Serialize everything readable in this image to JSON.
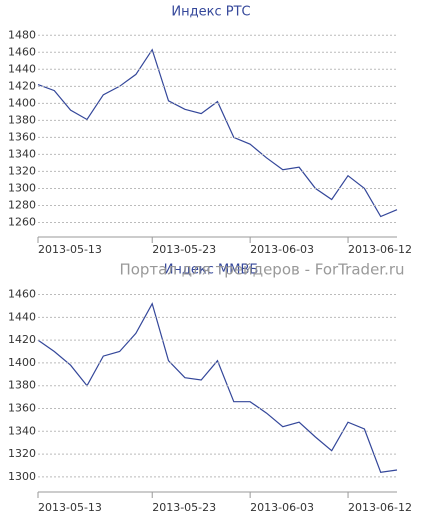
{
  "chart_data": [
    {
      "type": "line",
      "title": "Индекс РТС",
      "categories": [
        "2013-05-13",
        null,
        null,
        null,
        null,
        null,
        null,
        "2013-05-23",
        null,
        null,
        null,
        null,
        null,
        "2013-06-03",
        null,
        null,
        null,
        null,
        null,
        "2013-06-12",
        null,
        null,
        null
      ],
      "series": [
        {
          "name": "Индекс РТС",
          "color": "#34479a",
          "values": [
            1422,
            1415,
            1392,
            1381,
            1410,
            1420,
            1434,
            1463,
            1403,
            1393,
            1388,
            1402,
            1360,
            1352,
            1336,
            1322,
            1325,
            1300,
            1287,
            1315,
            1300,
            1267,
            1275
          ]
        }
      ],
      "ylim": [
        1250,
        1485
      ],
      "yticks": [
        1260,
        1280,
        1300,
        1320,
        1340,
        1360,
        1380,
        1400,
        1420,
        1440,
        1460,
        1480
      ],
      "grid": true
    },
    {
      "type": "line",
      "title": "Индекс ММВБ",
      "categories": [
        "2013-05-13",
        null,
        null,
        null,
        null,
        null,
        null,
        "2013-05-23",
        null,
        null,
        null,
        null,
        null,
        "2013-06-03",
        null,
        null,
        null,
        null,
        null,
        "2013-06-12",
        null,
        null,
        null
      ],
      "series": [
        {
          "name": "Индекс ММВБ",
          "color": "#34479a",
          "values": [
            1420,
            1410,
            1398,
            1380,
            1406,
            1410,
            1426,
            1452,
            1402,
            1387,
            1385,
            1402,
            1366,
            1366,
            1356,
            1344,
            1348,
            1335,
            1323,
            1348,
            1342,
            1304,
            1306
          ]
        }
      ],
      "ylim": [
        1292,
        1464
      ],
      "yticks": [
        1300,
        1320,
        1340,
        1360,
        1380,
        1400,
        1420,
        1440,
        1460
      ],
      "grid": true
    }
  ],
  "watermark": "Портал для трейдеров - ForTrader.ru"
}
